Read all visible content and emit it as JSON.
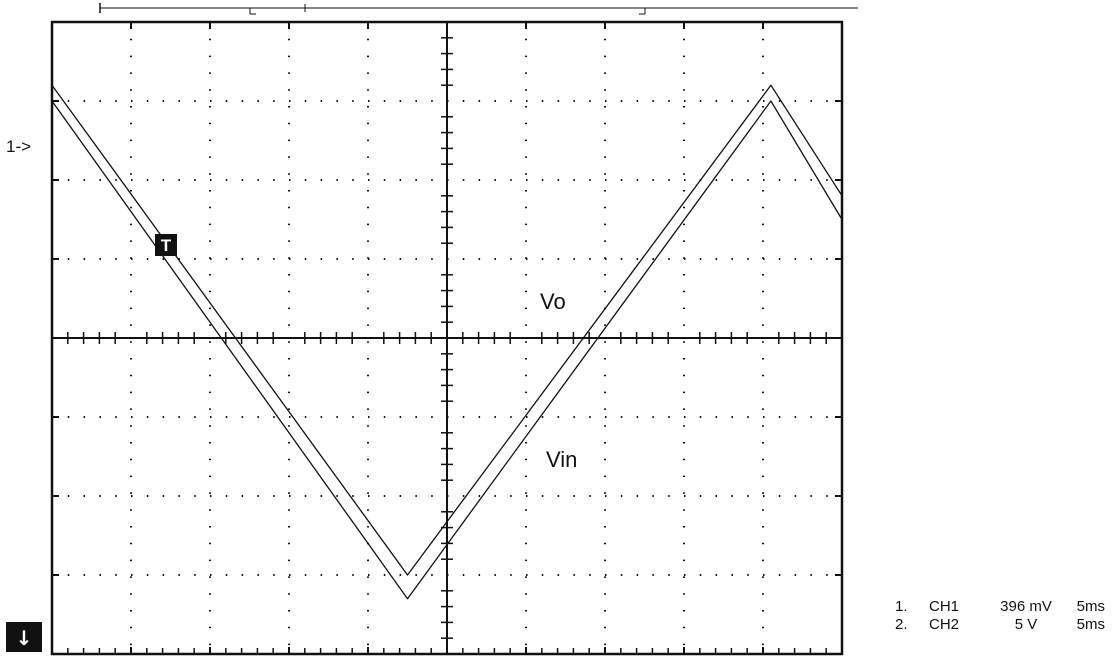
{
  "chart_data": {
    "type": "line",
    "grid": true,
    "divisions": {
      "x": 10,
      "y": 8
    },
    "x_range_div": [
      0,
      10
    ],
    "y_range_div": [
      -4,
      4
    ],
    "series": [
      {
        "name": "Vo",
        "points_div": [
          [
            0,
            3.2
          ],
          [
            4.5,
            -3.0
          ],
          [
            9.1,
            3.2
          ],
          [
            10,
            1.8
          ]
        ]
      },
      {
        "name": "Vin",
        "points_div": [
          [
            0,
            3.0
          ],
          [
            4.5,
            -3.3
          ],
          [
            9.1,
            3.0
          ],
          [
            10,
            1.5
          ]
        ]
      }
    ],
    "annotations": {
      "vo_label": "Vo",
      "vin_label": "Vin",
      "ch1_marker": "1->",
      "trigger_marker": "T",
      "ground_marker": "↓"
    },
    "channels": [
      {
        "index": "1.",
        "channel": "CH1",
        "scale": "396 mV",
        "timebase": "5ms"
      },
      {
        "index": "2.",
        "channel": "CH2",
        "scale": "5 V",
        "timebase": "5ms"
      }
    ]
  },
  "colors": {
    "trace": "#111111",
    "grid": "#111111",
    "background": "#ffffff"
  },
  "icons": {
    "trigger": "trigger-t-icon",
    "ground": "down-arrow-icon"
  }
}
